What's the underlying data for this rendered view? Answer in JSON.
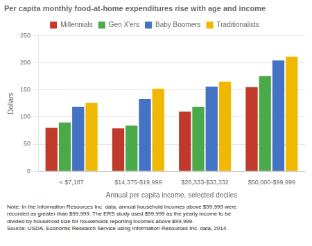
{
  "chart_data": {
    "type": "bar",
    "title": "Per capita monthly food-at-home expenditures rise with age and income",
    "ylabel": "Dollars",
    "xlabel": "Annual per capita income, selected deciles",
    "categories": [
      "< $7,187",
      "$14,375-$19,999",
      "$28,333-$33,332",
      "$50,000-$99,999"
    ],
    "series": [
      {
        "name": "Millennials",
        "color": "#c0392b",
        "values": [
          80,
          79,
          110,
          155
        ]
      },
      {
        "name": "Gen X'ers",
        "color": "#4aaa4a",
        "values": [
          90,
          84,
          119,
          175
        ]
      },
      {
        "name": "Baby Boomers",
        "color": "#4472c4",
        "values": [
          119,
          133,
          156,
          204
        ]
      },
      {
        "name": "Traditionalists",
        "color": "#f0b800",
        "values": [
          126,
          152,
          165,
          211
        ]
      }
    ],
    "ylim": [
      0,
      250
    ],
    "yticks": [
      0,
      50,
      100,
      150,
      200,
      250
    ],
    "grid": true,
    "legend": "top",
    "annotations": [
      "Note: In the Information Resources Inc. data, annual household incomes above $99,999 were",
      "recorded as greater than $99,999. The ERS study used $99,999 as the yearly income to be",
      "divided by household size for households reporting incomes above $99,999.",
      "Source: USDA, Economic Research Service using Information Resources Inc. data, 2014."
    ]
  }
}
